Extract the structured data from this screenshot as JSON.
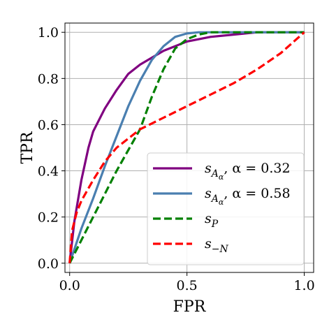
{
  "chart_data": {
    "type": "line",
    "xlabel": "FPR",
    "ylabel": "TPR",
    "xlim": [
      -0.02,
      1.04
    ],
    "ylim": [
      -0.04,
      1.04
    ],
    "xticks": [
      0.0,
      0.5,
      1.0
    ],
    "xtick_labels": [
      "0.0",
      "0.5",
      "1.0"
    ],
    "yticks": [
      0.0,
      0.2,
      0.4,
      0.6,
      0.8,
      1.0
    ],
    "ytick_labels": [
      "0.0",
      "0.2",
      "0.4",
      "0.6",
      "0.8",
      "1.0"
    ],
    "grid": true,
    "legend_position": "lower-right",
    "series": [
      {
        "name": "s_{A_α}, α = 0.32",
        "legend_main": "s",
        "legend_sub": "A",
        "legend_subsub": "α",
        "legend_rest": ", α = 0.32",
        "color": "#800080",
        "dash": "solid",
        "x": [
          0,
          0.02,
          0.05,
          0.08,
          0.1,
          0.15,
          0.2,
          0.25,
          0.3,
          0.35,
          0.4,
          0.45,
          0.5,
          0.6,
          0.7,
          0.8,
          1.0
        ],
        "y": [
          0,
          0.18,
          0.36,
          0.5,
          0.57,
          0.67,
          0.75,
          0.82,
          0.86,
          0.89,
          0.92,
          0.94,
          0.96,
          0.98,
          0.99,
          1.0,
          1.0
        ]
      },
      {
        "name": "s_{A_α}, α = 0.58",
        "legend_main": "s",
        "legend_sub": "A",
        "legend_subsub": "α",
        "legend_rest": ", α = 0.58",
        "color": "#4a7fb0",
        "dash": "solid",
        "x": [
          0,
          0.05,
          0.1,
          0.15,
          0.2,
          0.25,
          0.3,
          0.35,
          0.4,
          0.45,
          0.5,
          0.55,
          0.6,
          0.7,
          1.0
        ],
        "y": [
          0,
          0.15,
          0.28,
          0.42,
          0.55,
          0.68,
          0.79,
          0.88,
          0.94,
          0.98,
          0.995,
          1.0,
          1.0,
          1.0,
          1.0
        ]
      },
      {
        "name": "s_P",
        "legend_main": "s",
        "legend_sub": "P",
        "legend_subsub": "",
        "legend_rest": "",
        "color": "#008000",
        "dash": "dashed",
        "x": [
          0,
          0.1,
          0.2,
          0.25,
          0.3,
          0.35,
          0.4,
          0.45,
          0.5,
          0.55,
          0.6,
          0.7,
          1.0
        ],
        "y": [
          0,
          0.2,
          0.4,
          0.49,
          0.58,
          0.72,
          0.84,
          0.93,
          0.97,
          0.99,
          1.0,
          1.0,
          1.0
        ]
      },
      {
        "name": "s_{-N}",
        "legend_main": "s",
        "legend_sub": "−N",
        "legend_subsub": "",
        "legend_rest": "",
        "color": "#ff0000",
        "dash": "dashed",
        "x": [
          0,
          0.01,
          0.03,
          0.05,
          0.1,
          0.15,
          0.2,
          0.25,
          0.3,
          0.4,
          0.5,
          0.6,
          0.7,
          0.8,
          0.9,
          1.0
        ],
        "y": [
          0,
          0.14,
          0.22,
          0.27,
          0.36,
          0.44,
          0.5,
          0.54,
          0.58,
          0.63,
          0.68,
          0.73,
          0.78,
          0.84,
          0.91,
          1.0
        ]
      }
    ]
  }
}
